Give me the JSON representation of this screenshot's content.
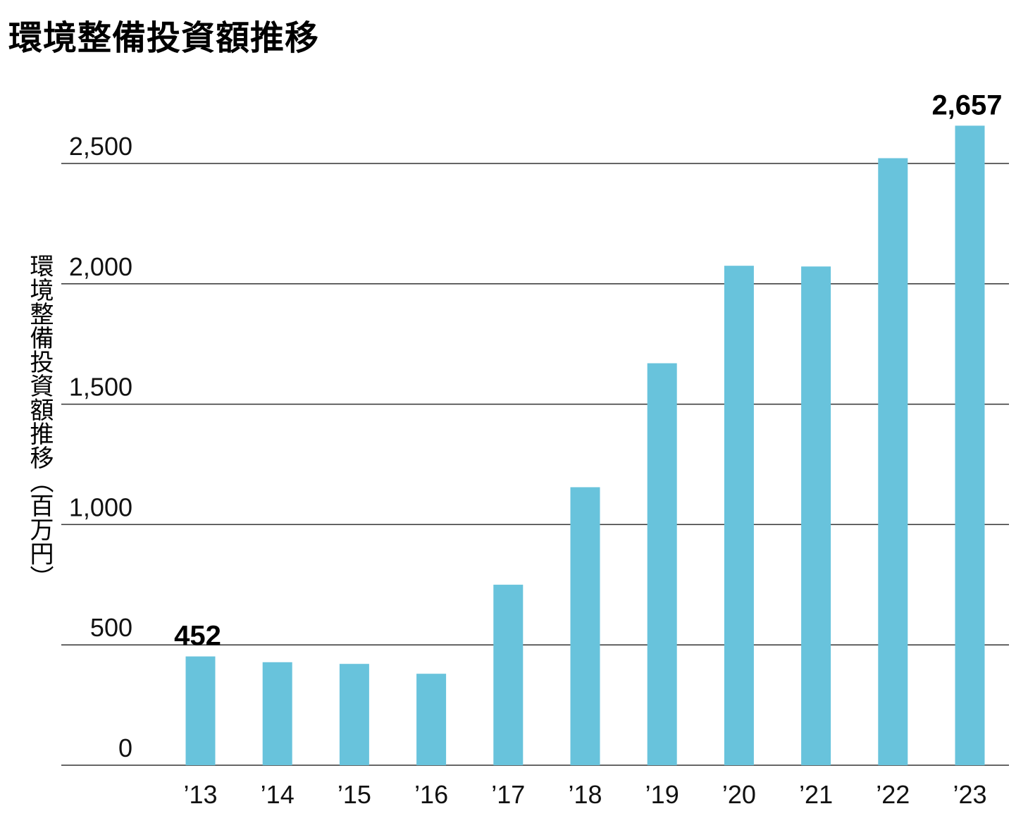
{
  "title": "環境整備投資額推移",
  "chart_data": {
    "type": "bar",
    "title": "環境整備投資額推移",
    "ylabel": "環境整備投資額推移（百万円）",
    "xlabel": "",
    "categories": [
      "’13",
      "’14",
      "’15",
      "’16",
      "’17",
      "’18",
      "’19",
      "’20",
      "’21",
      "’22",
      "’23"
    ],
    "values": [
      452,
      428,
      421,
      380,
      750,
      1155,
      1670,
      2075,
      2072,
      2522,
      2657
    ],
    "ylim": [
      0,
      2500
    ],
    "yticks": [
      0,
      500,
      1000,
      1500,
      2000,
      2500
    ],
    "ytick_labels": [
      "0",
      "500",
      "1,000",
      "1,500",
      "2,000",
      "2,500"
    ],
    "data_labels": [
      {
        "index": 0,
        "text": "452"
      },
      {
        "index": 10,
        "text": "2,657"
      }
    ],
    "grid": true,
    "bar_color": "#68C3DC",
    "grid_color": "#333333"
  }
}
